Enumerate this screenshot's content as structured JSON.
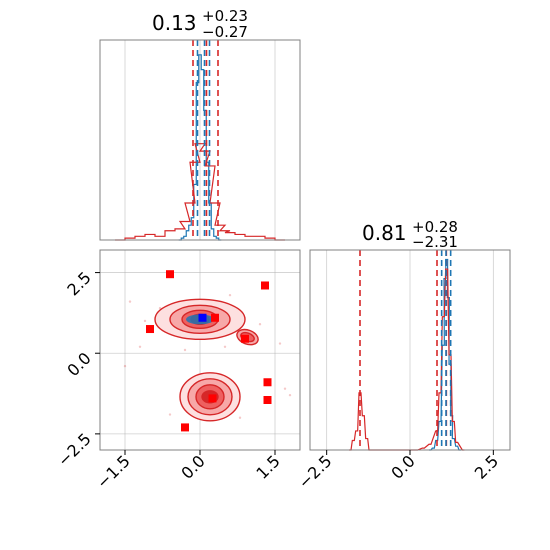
{
  "figure": {
    "titles": [
      {
        "main": "0.13",
        "sup": "+0.23",
        "sub": "−0.27"
      },
      {
        "main": "0.81",
        "sup": "+0.28",
        "sub": "−2.31"
      }
    ]
  },
  "colors": {
    "red": "#d62728",
    "blue": "#1f77b4",
    "pure_red": "#ff0000",
    "pure_blue": "#0000ff",
    "grid": "#b0b0b0",
    "spine": "#808080"
  },
  "chart_data": [
    {
      "id": "marginal-param1",
      "type": "histogram",
      "xlim": [
        -2.0,
        2.0
      ],
      "ticks": [
        -1.5,
        0.0,
        1.5
      ],
      "grid": true,
      "series": [
        {
          "color": "#1f77b4",
          "x": [
            -0.4,
            -0.35,
            -0.3,
            -0.25,
            -0.2,
            -0.15,
            -0.1,
            -0.05,
            0.0,
            0.05,
            0.1,
            0.15,
            0.2,
            0.25,
            0.3,
            0.35,
            0.4
          ],
          "y": [
            0.0,
            0.01,
            0.02,
            0.05,
            0.08,
            0.12,
            0.3,
            0.85,
            1.0,
            0.92,
            0.7,
            0.42,
            0.2,
            0.06,
            0.02,
            0.01,
            0.0
          ]
        },
        {
          "color": "#d62728",
          "x": [
            -1.6,
            -1.4,
            -1.2,
            -1.0,
            -0.8,
            -0.6,
            -0.4,
            -0.3,
            -0.2,
            -0.1,
            0.0,
            0.1,
            0.2,
            0.3,
            0.4,
            0.5,
            0.6,
            0.8,
            1.0,
            1.2,
            1.4,
            1.6
          ],
          "y": [
            0.0,
            0.01,
            0.02,
            0.03,
            0.02,
            0.05,
            0.06,
            0.1,
            0.2,
            0.42,
            0.52,
            0.48,
            0.4,
            0.2,
            0.08,
            0.05,
            0.04,
            0.03,
            0.02,
            0.02,
            0.01,
            0.0
          ]
        }
      ],
      "quantiles": {
        "blue": [
          -0.05,
          0.09,
          0.19
        ],
        "red": [
          -0.14,
          0.13,
          0.36
        ]
      }
    },
    {
      "id": "joint-param1-param2",
      "type": "scatter",
      "xlim": [
        -2.0,
        2.0
      ],
      "ylim": [
        -3.0,
        3.2
      ],
      "xticks": [
        -1.5,
        0.0,
        1.5
      ],
      "yticks": [
        -2.5,
        0.0,
        2.5
      ],
      "grid": true,
      "red_points": [
        [
          -0.6,
          2.45
        ],
        [
          1.3,
          2.1
        ],
        [
          -1.0,
          0.75
        ],
        [
          0.3,
          1.1
        ],
        [
          0.9,
          0.45
        ],
        [
          1.35,
          -0.9
        ],
        [
          1.35,
          -1.45
        ],
        [
          0.25,
          -1.4
        ],
        [
          -0.3,
          -2.3
        ]
      ],
      "blue_points": [
        [
          0.05,
          1.1
        ]
      ],
      "contour_modes": [
        [
          0.0,
          1.05
        ],
        [
          0.2,
          -1.35
        ],
        [
          0.95,
          0.5
        ]
      ]
    },
    {
      "id": "marginal-param2",
      "type": "histogram",
      "xlim": [
        -3.0,
        3.0
      ],
      "ticks": [
        -2.5,
        0.0,
        2.5
      ],
      "grid": true,
      "series": [
        {
          "color": "#1f77b4",
          "x": [
            0.6,
            0.7,
            0.8,
            0.9,
            1.0,
            1.05,
            1.1,
            1.15,
            1.2,
            1.25,
            1.3,
            1.4,
            1.5
          ],
          "y": [
            0.0,
            0.01,
            0.05,
            0.15,
            0.55,
            0.9,
            1.0,
            0.8,
            0.45,
            0.18,
            0.06,
            0.02,
            0.0
          ]
        },
        {
          "color": "#d62728",
          "x": [
            -1.8,
            -1.7,
            -1.6,
            -1.5,
            -1.4,
            -1.3,
            -1.2,
            0.2,
            0.4,
            0.6,
            0.8,
            0.9,
            1.0,
            1.1,
            1.2,
            1.3,
            1.4,
            1.6
          ],
          "y": [
            0.0,
            0.05,
            0.1,
            0.3,
            0.18,
            0.06,
            0.0,
            0.0,
            0.01,
            0.03,
            0.1,
            0.3,
            0.7,
            0.95,
            0.5,
            0.15,
            0.04,
            0.0
          ]
        }
      ],
      "quantiles": {
        "blue": [
          0.95,
          1.08,
          1.22
        ],
        "red": [
          -1.5,
          0.81,
          1.09
        ]
      }
    }
  ]
}
